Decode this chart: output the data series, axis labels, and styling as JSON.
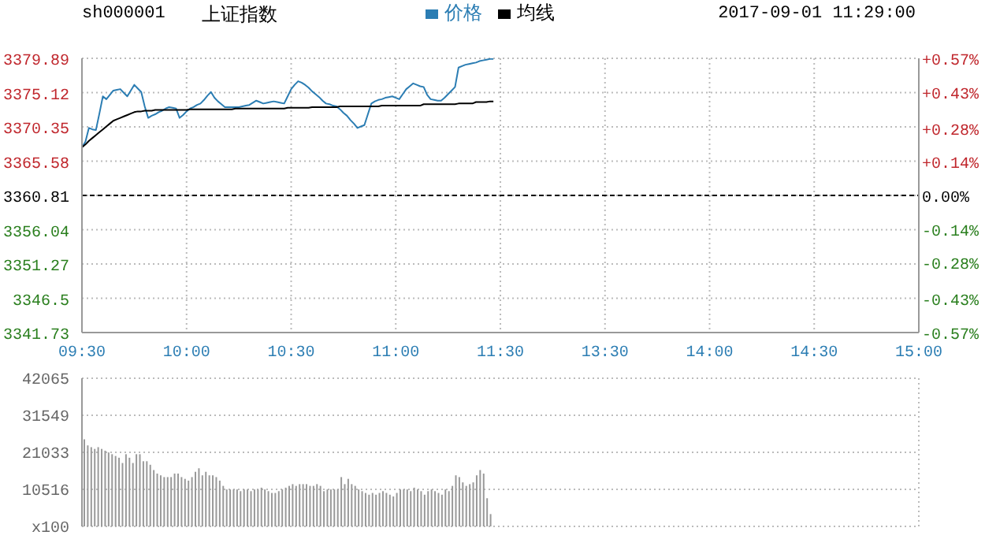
{
  "chart_data": [
    {
      "type": "line",
      "title": "上证指数",
      "subtitle": "sh000001",
      "annotations": [
        "2017-09-01 11:29:00"
      ],
      "categories": [
        "09:30",
        null,
        null,
        null,
        null,
        null,
        null,
        null,
        null,
        null,
        null,
        null,
        null,
        null,
        null,
        null,
        null,
        null,
        null,
        null,
        null,
        null,
        null,
        null,
        null,
        null,
        null,
        null,
        null,
        null,
        "10:00",
        null,
        null,
        null,
        null,
        null,
        null,
        null,
        null,
        null,
        null,
        null,
        null,
        null,
        null,
        null,
        null,
        null,
        null,
        null,
        null,
        null,
        null,
        null,
        null,
        null,
        null,
        null,
        null,
        null,
        "10:30",
        null,
        null,
        null,
        null,
        null,
        null,
        null,
        null,
        null,
        null,
        null,
        null,
        null,
        null,
        null,
        null,
        null,
        null,
        null,
        null,
        null,
        null,
        null,
        null,
        null,
        null,
        null,
        null,
        null,
        "11:00",
        null,
        null,
        null,
        null,
        null,
        null,
        null,
        null,
        null,
        null,
        null,
        null,
        null,
        null,
        null,
        null,
        null,
        null,
        null,
        null,
        null,
        null,
        null,
        null,
        null,
        null,
        null,
        null,
        null,
        "11:30",
        null,
        null,
        null,
        null,
        null,
        null,
        null,
        null,
        null,
        null,
        null,
        null,
        null,
        null,
        null,
        null,
        null,
        null,
        null,
        null,
        null,
        null,
        null,
        null,
        null,
        null,
        null,
        null,
        null,
        "13:30",
        null,
        null,
        null,
        null,
        null,
        null,
        null,
        null,
        null,
        null,
        null,
        null,
        null,
        null,
        null,
        null,
        null,
        null,
        null,
        null,
        null,
        null,
        null,
        null,
        null,
        null,
        null,
        null,
        null,
        "14:00",
        null,
        null,
        null,
        null,
        null,
        null,
        null,
        null,
        null,
        null,
        null,
        null,
        null,
        null,
        null,
        null,
        null,
        null,
        null,
        null,
        null,
        null,
        null,
        null,
        null,
        null,
        null,
        null,
        null,
        "14:30",
        null,
        null,
        null,
        null,
        null,
        null,
        null,
        null,
        null,
        null,
        null,
        null,
        null,
        null,
        null,
        null,
        null,
        null,
        null,
        null,
        null,
        null,
        null,
        null,
        null,
        null,
        null,
        null,
        null,
        "15:00"
      ],
      "ylim": [
        3341.73,
        3379.89
      ],
      "yticks": [
        3341.73,
        3346.5,
        3351.27,
        3356.04,
        3360.81,
        3365.58,
        3370.35,
        3375.12,
        3379.89
      ],
      "y2lim": [
        -0.57,
        0.57
      ],
      "y2ticks": [
        {
          "value": -0.57,
          "label": "-0.57%"
        },
        {
          "value": -0.43,
          "label": "-0.43%"
        },
        {
          "value": -0.28,
          "label": "-0.28%"
        },
        {
          "value": -0.14,
          "label": "-0.14%"
        },
        {
          "value": 0,
          "label": "0.00%"
        },
        {
          "value": 0.14,
          "label": "+0.14%"
        },
        {
          "value": 0.28,
          "label": "+0.28%"
        },
        {
          "value": 0.43,
          "label": "+0.43%"
        },
        {
          "value": 0.57,
          "label": "+0.57%"
        }
      ],
      "grid": true,
      "legend": "top",
      "marker": "none",
      "ref_lines": [
        {
          "axis": "y",
          "value": 3360.81,
          "color": "#000000",
          "line_style": "dashed"
        }
      ],
      "series": [
        {
          "name": "价格",
          "color": "#2b7db3",
          "values": [
            3367.5,
            3368.3,
            3370.2,
            3370.0,
            3369.9,
            3372.2,
            3374.6,
            3374.2,
            3374.8,
            3375.4,
            3375.5,
            3375.6,
            3375.1,
            3374.6,
            3375.4,
            3376.2,
            3375.7,
            3375.2,
            3373.2,
            3371.6,
            3371.9,
            3372.1,
            3372.4,
            3372.6,
            3372.9,
            3373.1,
            3373.0,
            3372.9,
            3371.6,
            3372.0,
            3372.5,
            3372.9,
            3373.1,
            3373.4,
            3373.6,
            3374.1,
            3374.7,
            3375.2,
            3374.4,
            3373.9,
            3373.5,
            3373.1,
            3373.1,
            3373.1,
            3373.1,
            3373.1,
            3373.2,
            3373.3,
            3373.4,
            3373.7,
            3374.0,
            3373.8,
            3373.6,
            3373.7,
            3373.8,
            3373.9,
            3373.8,
            3373.7,
            3373.6,
            3374.6,
            3375.6,
            3376.2,
            3376.7,
            3376.5,
            3376.2,
            3375.8,
            3375.3,
            3374.9,
            3374.5,
            3374.0,
            3373.6,
            3373.5,
            3373.3,
            3373.2,
            3372.8,
            3372.3,
            3371.9,
            3371.3,
            3370.8,
            3370.2,
            3370.4,
            3370.6,
            3372.1,
            3373.6,
            3373.9,
            3374.1,
            3374.2,
            3374.4,
            3374.5,
            3374.6,
            3374.4,
            3374.2,
            3374.9,
            3375.6,
            3376.0,
            3376.4,
            3376.2,
            3376.0,
            3375.9,
            3374.8,
            3374.2,
            3374.1,
            3374.0,
            3374.0,
            3374.4,
            3374.9,
            3375.4,
            3375.9,
            3378.6,
            3378.8,
            3379.0,
            3379.1,
            3379.2,
            3379.3,
            3379.5,
            3379.6,
            3379.7,
            3379.8,
            3379.8,
            null,
            null,
            null,
            null,
            null,
            null,
            null,
            null,
            null,
            null,
            null,
            null,
            null,
            null,
            null,
            null,
            null,
            null,
            null,
            null,
            null,
            null,
            null,
            null,
            null,
            null,
            null,
            null,
            null,
            null,
            null,
            null,
            null,
            null,
            null,
            null,
            null,
            null,
            null,
            null,
            null,
            null,
            null,
            null,
            null,
            null,
            null,
            null,
            null,
            null,
            null,
            null,
            null,
            null,
            null,
            null,
            null,
            null,
            null,
            null,
            null,
            null,
            null,
            null,
            null,
            null,
            null,
            null,
            null,
            null,
            null,
            null,
            null,
            null,
            null,
            null,
            null,
            null,
            null,
            null,
            null,
            null,
            null,
            null,
            null,
            null,
            null,
            null,
            null,
            null,
            null,
            null,
            null,
            null,
            null,
            null,
            null,
            null,
            null,
            null,
            null,
            null,
            null,
            null,
            null,
            null,
            null,
            null,
            null,
            null,
            null,
            null,
            null,
            null,
            null,
            null,
            null,
            null,
            null,
            null,
            null,
            null
          ]
        },
        {
          "name": "均线",
          "color": "#000000",
          "values": [
            3367.5,
            3367.9,
            3368.4,
            3368.8,
            3369.2,
            3369.6,
            3370.0,
            3370.4,
            3370.8,
            3371.2,
            3371.4,
            3371.6,
            3371.8,
            3372.0,
            3372.2,
            3372.4,
            3372.5,
            3372.5,
            3372.6,
            3372.6,
            3372.6,
            3372.7,
            3372.7,
            3372.7,
            3372.7,
            3372.7,
            3372.7,
            3372.7,
            3372.7,
            3372.7,
            3372.7,
            3372.8,
            3372.8,
            3372.8,
            3372.8,
            3372.8,
            3372.8,
            3372.8,
            3372.8,
            3372.8,
            3372.8,
            3372.8,
            3372.8,
            3372.8,
            3372.9,
            3372.9,
            3372.9,
            3372.9,
            3372.9,
            3372.9,
            3372.9,
            3372.9,
            3372.9,
            3372.9,
            3372.9,
            3372.9,
            3372.9,
            3372.9,
            3372.9,
            3373.0,
            3373.0,
            3373.0,
            3373.0,
            3373.0,
            3373.0,
            3373.0,
            3373.1,
            3373.1,
            3373.1,
            3373.1,
            3373.1,
            3373.1,
            3373.1,
            3373.1,
            3373.2,
            3373.2,
            3373.2,
            3373.2,
            3373.2,
            3373.2,
            3373.2,
            3373.2,
            3373.2,
            3373.2,
            3373.2,
            3373.2,
            3373.3,
            3373.3,
            3373.3,
            3373.3,
            3373.3,
            3373.3,
            3373.3,
            3373.3,
            3373.3,
            3373.3,
            3373.3,
            3373.3,
            3373.5,
            3373.5,
            3373.5,
            3373.5,
            3373.5,
            3373.5,
            3373.5,
            3373.5,
            3373.5,
            3373.5,
            3373.6,
            3373.6,
            3373.6,
            3373.6,
            3373.6,
            3373.8,
            3373.8,
            3373.8,
            3373.8,
            3373.9,
            3373.9,
            null,
            null,
            null,
            null,
            null,
            null,
            null,
            null,
            null,
            null,
            null,
            null,
            null,
            null,
            null,
            null,
            null,
            null,
            null,
            null,
            null,
            null,
            null,
            null,
            null,
            null,
            null,
            null,
            null,
            null,
            null,
            null,
            null,
            null,
            null,
            null,
            null,
            null,
            null,
            null,
            null,
            null,
            null,
            null,
            null,
            null,
            null,
            null,
            null,
            null,
            null,
            null,
            null,
            null,
            null,
            null,
            null,
            null,
            null,
            null,
            null,
            null,
            null,
            null,
            null,
            null,
            null,
            null,
            null,
            null,
            null,
            null,
            null,
            null,
            null,
            null,
            null,
            null,
            null,
            null,
            null,
            null,
            null,
            null,
            null,
            null,
            null,
            null,
            null,
            null,
            null,
            null,
            null,
            null,
            null,
            null,
            null,
            null,
            null,
            null,
            null,
            null,
            null,
            null,
            null,
            null,
            null,
            null,
            null,
            null,
            null,
            null,
            null,
            null,
            null,
            null,
            null,
            null,
            null,
            null,
            null,
            null
          ]
        }
      ]
    },
    {
      "type": "bar",
      "tick_labels": "y",
      "grid": true,
      "categories": [
        null,
        null,
        null,
        null,
        null,
        null,
        null,
        null,
        null,
        null,
        null,
        null,
        null,
        null,
        null,
        null,
        null,
        null,
        null,
        null,
        null,
        null,
        null,
        null,
        null,
        null,
        null,
        null,
        null,
        null,
        null,
        null,
        null,
        null,
        null,
        null,
        null,
        null,
        null,
        null,
        null,
        null,
        null,
        null,
        null,
        null,
        null,
        null,
        null,
        null,
        null,
        null,
        null,
        null,
        null,
        null,
        null,
        null,
        null,
        null,
        null,
        null,
        null,
        null,
        null,
        null,
        null,
        null,
        null,
        null,
        null,
        null,
        null,
        null,
        null,
        null,
        null,
        null,
        null,
        null,
        null,
        null,
        null,
        null,
        null,
        null,
        null,
        null,
        null,
        null,
        null,
        null,
        null,
        null,
        null,
        null,
        null,
        null,
        null,
        null,
        null,
        null,
        null,
        null,
        null,
        null,
        null,
        null,
        null,
        null,
        null,
        null,
        null,
        null,
        null,
        null,
        null,
        null,
        null,
        null,
        null,
        null,
        null,
        null,
        null,
        null,
        null,
        null,
        null,
        null,
        null,
        null,
        null,
        null,
        null,
        null,
        null,
        null,
        null,
        null,
        null,
        null,
        null,
        null,
        null,
        null,
        null,
        null,
        null,
        null,
        null,
        null,
        null,
        null,
        null,
        null,
        null,
        null,
        null,
        null,
        null,
        null,
        null,
        null,
        null,
        null,
        null,
        null,
        null,
        null,
        null,
        null,
        null,
        null,
        null,
        null,
        null,
        null,
        null,
        null,
        null,
        null,
        null,
        null,
        null,
        null,
        null,
        null,
        null,
        null,
        null,
        null,
        null,
        null,
        null,
        null,
        null,
        null,
        null,
        null,
        null,
        null,
        null,
        null,
        null,
        null,
        null,
        null,
        null,
        null,
        null,
        null,
        null,
        null,
        null,
        null,
        null,
        null,
        null,
        null,
        null,
        null,
        null,
        null,
        null,
        null,
        null,
        null,
        null,
        null,
        null,
        null,
        null,
        null,
        null,
        null,
        null,
        null,
        null,
        null,
        null
      ],
      "ylim": [
        0,
        42065
      ],
      "yticks": [
        {
          "value": 0,
          "label": "x100"
        },
        10516,
        21033,
        31549,
        42065
      ],
      "series": [
        {
          "color": "#999999",
          "values": [
            24700,
            23000,
            22500,
            22000,
            22500,
            22000,
            21500,
            21000,
            20500,
            20000,
            19500,
            18000,
            20500,
            19500,
            18000,
            20500,
            20500,
            18500,
            18500,
            17500,
            16000,
            15000,
            14500,
            14000,
            14000,
            14000,
            15000,
            15000,
            14000,
            13500,
            13000,
            14000,
            15500,
            16500,
            14500,
            15500,
            14500,
            14500,
            14000,
            13000,
            11500,
            10500,
            10500,
            10500,
            10500,
            10000,
            10500,
            10500,
            10000,
            10500,
            10500,
            11000,
            10500,
            10000,
            9500,
            9500,
            10000,
            10500,
            11000,
            11500,
            12000,
            11500,
            12000,
            12000,
            12000,
            11500,
            11500,
            12000,
            11500,
            10000,
            10500,
            10500,
            10500,
            10500,
            14000,
            12000,
            13500,
            12000,
            11500,
            10500,
            10000,
            9500,
            9000,
            9500,
            9000,
            9500,
            10000,
            9500,
            9000,
            8500,
            9500,
            10500,
            10500,
            10500,
            10000,
            11000,
            10500,
            10000,
            9000,
            10000,
            10500,
            10000,
            9500,
            9000,
            10500,
            10000,
            11500,
            14500,
            14000,
            12500,
            11500,
            12000,
            12500,
            14500,
            16000,
            15000,
            8000,
            3500,
            null,
            null,
            null,
            null,
            null,
            null,
            null,
            null,
            null,
            null,
            null,
            null,
            null,
            null,
            null,
            null,
            null,
            null,
            null,
            null,
            null,
            null,
            null,
            null,
            null,
            null,
            null,
            null,
            null,
            null,
            null,
            null,
            null,
            null,
            null,
            null,
            null,
            null,
            null,
            null,
            null,
            null,
            null,
            null,
            null,
            null,
            null,
            null,
            null,
            null,
            null,
            null,
            null,
            null,
            null,
            null,
            null,
            null,
            null,
            null,
            null,
            null,
            null,
            null,
            null,
            null,
            null,
            null,
            null,
            null,
            null,
            null,
            null,
            null,
            null,
            null,
            null,
            null,
            null,
            null,
            null,
            null,
            null,
            null,
            null,
            null,
            null,
            null,
            null,
            null,
            null,
            null,
            null,
            null,
            null,
            null,
            null,
            null,
            null,
            null,
            null,
            null,
            null,
            null,
            null,
            null,
            null,
            null,
            null,
            null,
            null,
            null,
            null,
            null,
            null,
            null,
            null,
            null,
            null,
            null,
            null,
            null,
            null
          ]
        }
      ]
    }
  ]
}
